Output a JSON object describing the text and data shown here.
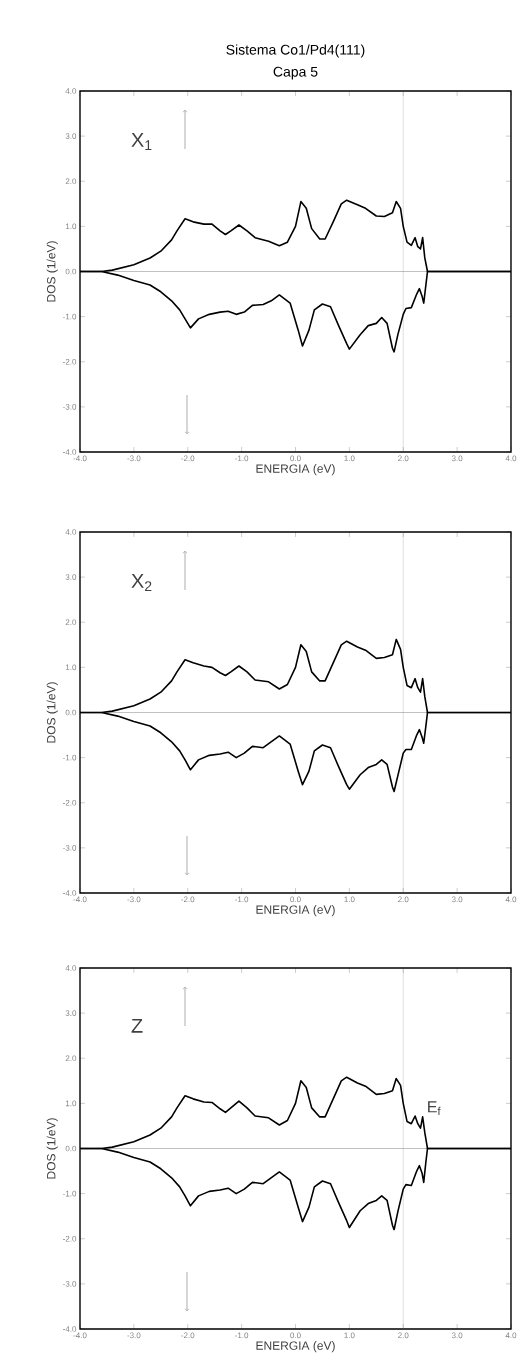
{
  "chart_data": [
    {
      "type": "line",
      "title": "Sistema Co1/Pd4(111)",
      "subtitle": "Capa 5",
      "xlabel": "ENERGIA (eV)",
      "ylabel": "DOS (1/eV)",
      "annotations": [
        "X$_{1}$"
      ],
      "xlim": [
        -4,
        4
      ],
      "ylim": [
        -4,
        4
      ],
      "xticks": [
        {
          "value": -4,
          "label": "-4.0"
        },
        {
          "value": -3,
          "label": "-3.0"
        },
        {
          "value": -2,
          "label": "-2.0"
        },
        {
          "value": -1,
          "label": "-1.0"
        },
        {
          "value": 0,
          "label": "0.0"
        },
        {
          "value": 1,
          "label": "1.0"
        },
        {
          "value": 2,
          "label": "2.0"
        },
        {
          "value": 3,
          "label": "3.0"
        },
        {
          "value": 4,
          "label": "4.0"
        }
      ],
      "yticks": [
        {
          "value": -4,
          "label": "-4.0"
        },
        {
          "value": -3,
          "label": "-3.0"
        },
        {
          "value": -2,
          "label": "-2.0"
        },
        {
          "value": -1,
          "label": "-1.0"
        },
        {
          "value": 0,
          "label": "0.0"
        },
        {
          "value": 1,
          "label": "1.0"
        },
        {
          "value": 2,
          "label": "2.0"
        },
        {
          "value": 3,
          "label": "3.0"
        },
        {
          "value": 4,
          "label": "4.0"
        }
      ],
      "ref_lines": [
        {
          "axis": "y",
          "value": 0,
          "color": "#808080"
        },
        {
          "axis": "x",
          "value": 2.0,
          "color": "#808080"
        }
      ],
      "series": [
        {
          "color": "#000000",
          "x": [
            -4,
            -3.6,
            -3.4,
            -3.0,
            -2.7,
            -2.5,
            -2.3,
            -2.2,
            -2.05,
            -1.9,
            -1.7,
            -1.55,
            -1.4,
            -1.3,
            -1.2,
            -1.05,
            -0.9,
            -0.75,
            -0.5,
            -0.3,
            -0.15,
            0.0,
            0.1,
            0.2,
            0.3,
            0.45,
            0.55,
            0.7,
            0.85,
            0.95,
            1.15,
            1.3,
            1.5,
            1.65,
            1.8,
            1.87,
            1.95,
            2.0,
            2.07,
            2.15,
            2.22,
            2.27,
            2.32,
            2.36,
            2.4,
            2.45,
            4.0
          ],
          "values": [
            0,
            0,
            0.03,
            0.15,
            0.3,
            0.45,
            0.7,
            0.9,
            1.17,
            1.1,
            1.05,
            1.05,
            0.9,
            0.82,
            0.9,
            1.03,
            0.9,
            0.75,
            0.67,
            0.57,
            0.65,
            1.0,
            1.55,
            1.4,
            0.95,
            0.72,
            0.72,
            1.1,
            1.5,
            1.58,
            1.48,
            1.4,
            1.23,
            1.22,
            1.3,
            1.55,
            1.4,
            1.0,
            0.65,
            0.58,
            0.75,
            0.55,
            0.5,
            0.75,
            0.3,
            0,
            0
          ]
        },
        {
          "color": "#000000",
          "x": [
            -4,
            -3.6,
            -3.3,
            -3.0,
            -2.7,
            -2.5,
            -2.3,
            -2.15,
            -2.05,
            -1.95,
            -1.8,
            -1.6,
            -1.4,
            -1.25,
            -1.1,
            -0.95,
            -0.8,
            -0.6,
            -0.45,
            -0.3,
            -0.1,
            0.05,
            0.13,
            0.25,
            0.35,
            0.5,
            0.65,
            0.8,
            0.95,
            1.0,
            1.2,
            1.35,
            1.5,
            1.6,
            1.7,
            1.8,
            1.83,
            1.9,
            2.0,
            2.05,
            2.15,
            2.25,
            2.3,
            2.35,
            2.38,
            2.42,
            2.45,
            4.0
          ],
          "values": [
            0,
            0,
            -0.08,
            -0.2,
            -0.3,
            -0.45,
            -0.65,
            -0.85,
            -1.05,
            -1.25,
            -1.05,
            -0.95,
            -0.9,
            -0.88,
            -0.95,
            -0.9,
            -0.75,
            -0.73,
            -0.65,
            -0.52,
            -0.7,
            -1.3,
            -1.65,
            -1.3,
            -0.85,
            -0.72,
            -0.78,
            -1.2,
            -1.6,
            -1.72,
            -1.4,
            -1.2,
            -1.15,
            -1.02,
            -1.15,
            -1.7,
            -1.78,
            -1.4,
            -0.95,
            -0.82,
            -0.8,
            -0.5,
            -0.38,
            -0.55,
            -0.7,
            -0.3,
            0,
            0
          ]
        }
      ]
    },
    {
      "type": "line",
      "xlabel": "ENERGIA (eV)",
      "ylabel": "DOS (1/eV)",
      "annotations": [
        "X$_{2}$"
      ],
      "xlim": [
        -4,
        4
      ],
      "ylim": [
        -4,
        4
      ],
      "xticks": [
        {
          "value": -4,
          "label": "-4.0"
        },
        {
          "value": -3,
          "label": "-3.0"
        },
        {
          "value": -2,
          "label": "-2.0"
        },
        {
          "value": -1,
          "label": "-1.0"
        },
        {
          "value": 0,
          "label": "0.0"
        },
        {
          "value": 1,
          "label": "1.0"
        },
        {
          "value": 2,
          "label": "2.0"
        },
        {
          "value": 3,
          "label": "3.0"
        },
        {
          "value": 4,
          "label": "4.0"
        }
      ],
      "yticks": [
        {
          "value": -4,
          "label": "-4.0"
        },
        {
          "value": -3,
          "label": "-3.0"
        },
        {
          "value": -2,
          "label": "-2.0"
        },
        {
          "value": -1,
          "label": "-1.0"
        },
        {
          "value": 0,
          "label": "0.0"
        },
        {
          "value": 1,
          "label": "1.0"
        },
        {
          "value": 2,
          "label": "2.0"
        },
        {
          "value": 3,
          "label": "3.0"
        },
        {
          "value": 4,
          "label": "4.0"
        }
      ],
      "ref_lines": [
        {
          "axis": "y",
          "value": 0,
          "color": "#808080"
        },
        {
          "axis": "x",
          "value": 2.0,
          "color": "#808080"
        }
      ],
      "series": [
        {
          "color": "#000000",
          "x": [
            -4,
            -3.6,
            -3.4,
            -3.0,
            -2.7,
            -2.5,
            -2.3,
            -2.2,
            -2.05,
            -1.9,
            -1.7,
            -1.55,
            -1.4,
            -1.3,
            -1.2,
            -1.05,
            -0.9,
            -0.75,
            -0.5,
            -0.3,
            -0.15,
            0.0,
            0.1,
            0.2,
            0.3,
            0.45,
            0.55,
            0.7,
            0.85,
            0.95,
            1.15,
            1.3,
            1.5,
            1.65,
            1.8,
            1.87,
            1.95,
            2.0,
            2.07,
            2.15,
            2.22,
            2.27,
            2.32,
            2.36,
            2.4,
            2.45,
            4.0
          ],
          "values": [
            0,
            0,
            0.03,
            0.15,
            0.3,
            0.45,
            0.7,
            0.9,
            1.17,
            1.1,
            1.03,
            1.0,
            0.88,
            0.82,
            0.9,
            1.03,
            0.9,
            0.72,
            0.68,
            0.52,
            0.62,
            1.0,
            1.5,
            1.35,
            0.9,
            0.7,
            0.7,
            1.1,
            1.5,
            1.58,
            1.45,
            1.38,
            1.2,
            1.22,
            1.28,
            1.62,
            1.4,
            1.0,
            0.6,
            0.55,
            0.75,
            0.55,
            0.45,
            0.75,
            0.35,
            0,
            0
          ]
        },
        {
          "color": "#000000",
          "x": [
            -4,
            -3.6,
            -3.3,
            -3.0,
            -2.7,
            -2.5,
            -2.3,
            -2.15,
            -2.05,
            -1.95,
            -1.8,
            -1.6,
            -1.4,
            -1.25,
            -1.1,
            -0.95,
            -0.8,
            -0.6,
            -0.45,
            -0.3,
            -0.1,
            0.05,
            0.13,
            0.25,
            0.35,
            0.5,
            0.65,
            0.8,
            0.95,
            1.0,
            1.2,
            1.35,
            1.5,
            1.6,
            1.7,
            1.8,
            1.83,
            1.9,
            2.0,
            2.05,
            2.15,
            2.25,
            2.3,
            2.35,
            2.38,
            2.42,
            2.45,
            4.0
          ],
          "values": [
            0,
            0,
            -0.08,
            -0.2,
            -0.3,
            -0.45,
            -0.65,
            -0.85,
            -1.05,
            -1.27,
            -1.05,
            -0.95,
            -0.92,
            -0.88,
            -1.0,
            -0.9,
            -0.75,
            -0.78,
            -0.65,
            -0.52,
            -0.7,
            -1.3,
            -1.6,
            -1.3,
            -0.85,
            -0.72,
            -0.78,
            -1.2,
            -1.6,
            -1.7,
            -1.38,
            -1.22,
            -1.15,
            -1.05,
            -1.15,
            -1.65,
            -1.75,
            -1.4,
            -0.9,
            -0.82,
            -0.82,
            -0.5,
            -0.38,
            -0.55,
            -0.68,
            -0.3,
            0,
            0
          ]
        }
      ]
    },
    {
      "type": "line",
      "xlabel": "ENERGIA (eV)",
      "ylabel": "DOS (1/eV)",
      "annotations": [
        "Z"
      ],
      "xlim": [
        -4,
        4
      ],
      "ylim": [
        -4,
        4
      ],
      "xticks": [
        {
          "value": -4,
          "label": "-4.0"
        },
        {
          "value": -3,
          "label": "-3.0"
        },
        {
          "value": -2,
          "label": "-2.0"
        },
        {
          "value": -1,
          "label": "-1.0"
        },
        {
          "value": 0,
          "label": "0.0"
        },
        {
          "value": 1,
          "label": "1.0"
        },
        {
          "value": 2,
          "label": "2.0"
        },
        {
          "value": 3,
          "label": "3.0"
        },
        {
          "value": 4,
          "label": "4.0"
        }
      ],
      "yticks": [
        {
          "value": -4,
          "label": "-4.0"
        },
        {
          "value": -3,
          "label": "-3.0"
        },
        {
          "value": -2,
          "label": "-2.0"
        },
        {
          "value": -1,
          "label": "-1.0"
        },
        {
          "value": 0,
          "label": "0.0"
        },
        {
          "value": 1,
          "label": "1.0"
        },
        {
          "value": 2,
          "label": "2.0"
        },
        {
          "value": 3,
          "label": "3.0"
        },
        {
          "value": 4,
          "label": "4.0"
        }
      ],
      "ref_lines": [
        {
          "axis": "y",
          "value": 0,
          "color": "#808080"
        },
        {
          "axis": "x",
          "value": 2.0,
          "color": "#808080",
          "label": "E$_{f}$"
        }
      ],
      "series": [
        {
          "color": "#000000",
          "x": [
            -4,
            -3.6,
            -3.4,
            -3.0,
            -2.7,
            -2.5,
            -2.3,
            -2.2,
            -2.05,
            -1.9,
            -1.7,
            -1.55,
            -1.4,
            -1.3,
            -1.2,
            -1.05,
            -0.9,
            -0.75,
            -0.5,
            -0.3,
            -0.15,
            0.0,
            0.1,
            0.2,
            0.3,
            0.45,
            0.55,
            0.7,
            0.85,
            0.95,
            1.15,
            1.3,
            1.5,
            1.65,
            1.8,
            1.87,
            1.95,
            2.0,
            2.07,
            2.15,
            2.22,
            2.27,
            2.32,
            2.36,
            2.4,
            2.45,
            4.0
          ],
          "values": [
            0,
            0,
            0.03,
            0.15,
            0.3,
            0.45,
            0.7,
            0.9,
            1.17,
            1.1,
            1.03,
            1.02,
            0.88,
            0.8,
            0.9,
            1.05,
            0.9,
            0.72,
            0.68,
            0.52,
            0.62,
            1.0,
            1.5,
            1.35,
            0.9,
            0.7,
            0.7,
            1.1,
            1.5,
            1.58,
            1.45,
            1.38,
            1.2,
            1.22,
            1.28,
            1.55,
            1.4,
            1.0,
            0.6,
            0.55,
            0.72,
            0.55,
            0.45,
            0.7,
            0.35,
            0,
            0
          ]
        },
        {
          "color": "#000000",
          "x": [
            -4,
            -3.6,
            -3.3,
            -3.0,
            -2.7,
            -2.5,
            -2.3,
            -2.15,
            -2.05,
            -1.95,
            -1.8,
            -1.6,
            -1.4,
            -1.25,
            -1.1,
            -0.95,
            -0.8,
            -0.6,
            -0.45,
            -0.3,
            -0.1,
            0.05,
            0.13,
            0.25,
            0.35,
            0.5,
            0.65,
            0.8,
            0.95,
            1.0,
            1.2,
            1.35,
            1.5,
            1.6,
            1.7,
            1.8,
            1.83,
            1.9,
            2.0,
            2.05,
            2.15,
            2.25,
            2.3,
            2.35,
            2.38,
            2.42,
            2.45,
            4.0
          ],
          "values": [
            0,
            0,
            -0.08,
            -0.2,
            -0.3,
            -0.45,
            -0.65,
            -0.85,
            -1.05,
            -1.27,
            -1.05,
            -0.95,
            -0.92,
            -0.88,
            -1.0,
            -0.9,
            -0.75,
            -0.78,
            -0.65,
            -0.52,
            -0.7,
            -1.3,
            -1.62,
            -1.3,
            -0.85,
            -0.72,
            -0.78,
            -1.2,
            -1.6,
            -1.75,
            -1.38,
            -1.22,
            -1.15,
            -1.05,
            -1.15,
            -1.7,
            -1.8,
            -1.4,
            -0.9,
            -0.8,
            -0.82,
            -0.5,
            -0.38,
            -0.55,
            -0.75,
            -0.3,
            0,
            0
          ]
        }
      ]
    }
  ]
}
